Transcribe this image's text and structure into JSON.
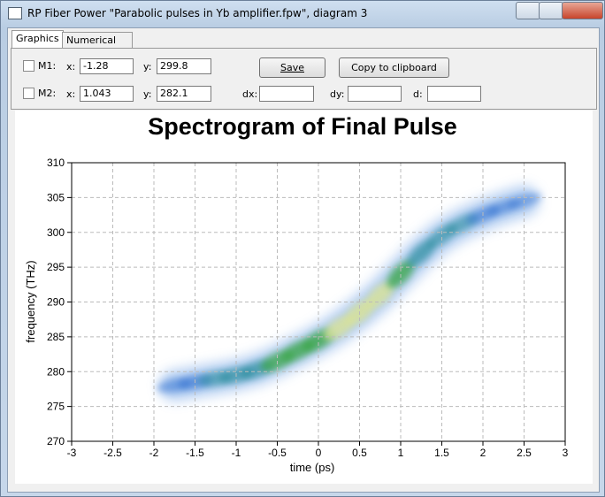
{
  "window": {
    "title": "RP Fiber Power \"Parabolic pulses in Yb amplifier.fpw\", diagram 3"
  },
  "tabs": [
    "Graphics",
    "Numerical data"
  ],
  "markers": [
    {
      "label": "M1:",
      "x_label": "x:",
      "x": "-1.28",
      "y_label": "y:",
      "y": "299.8"
    },
    {
      "label": "M2:",
      "x_label": "x:",
      "x": "1.043",
      "y_label": "y:",
      "y": "282.1"
    }
  ],
  "delta_labels": [
    "dx:",
    "dy:",
    "d:"
  ],
  "buttons": [
    "Save",
    "Copy to clipboard"
  ],
  "chart_data": {
    "type": "spectrogram",
    "title": "Spectrogram of Final Pulse",
    "x_label": "time (ps)",
    "y_label": "frequency (THz)",
    "x": [
      -1.75,
      -1.5,
      -1.25,
      -1,
      -0.75,
      -0.5,
      -0.25,
      0,
      0.25,
      0.5,
      0.75,
      1,
      1.25,
      1.5,
      1.75,
      2,
      2.25,
      2.5
    ],
    "y": [
      278,
      278.5,
      279,
      279.5,
      280.3,
      281.5,
      283,
      284.5,
      286.3,
      288.5,
      291,
      294,
      297,
      299.5,
      301.2,
      302.5,
      303.6,
      304.5
    ],
    "intensity": [
      0.3,
      0.45,
      0.55,
      0.65,
      0.72,
      0.8,
      0.85,
      0.9,
      0.95,
      1,
      0.95,
      0.85,
      0.75,
      0.6,
      0.5,
      0.4,
      0.3,
      0.2
    ],
    "xlim": [
      -3,
      3
    ],
    "ylim": [
      270,
      310
    ],
    "xticks": [
      -3,
      -2.5,
      -2,
      -1.5,
      -1,
      -0.5,
      0,
      0.5,
      1,
      1.5,
      2,
      2.5,
      3
    ],
    "yticks": [
      270,
      275,
      280,
      285,
      290,
      295,
      300,
      305,
      310
    ],
    "grid": true
  }
}
